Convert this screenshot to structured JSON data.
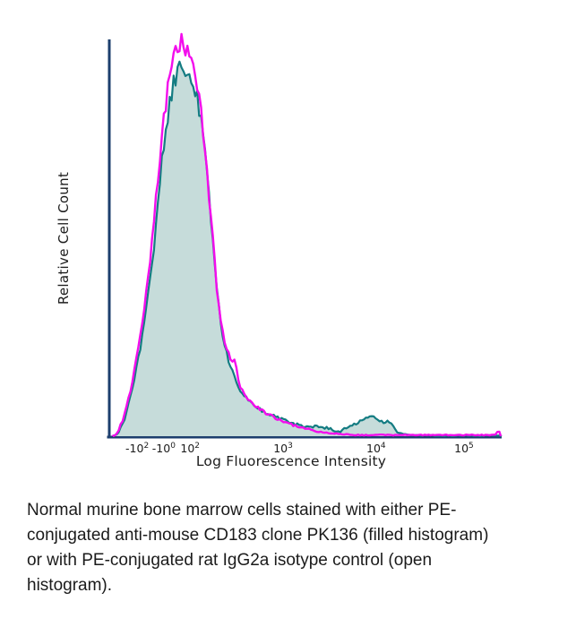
{
  "figure": {
    "caption_lines": [
      "Normal murine bone marrow cells stained with either PE-",
      "conjugated anti-mouse CD183 clone PK136 (filled histogram)",
      "or with PE-conjugated rat IgG2a isotype control (open",
      "histogram)."
    ]
  },
  "chart_data": {
    "type": "area",
    "subtype": "flow-cytometry-overlay-histogram",
    "title": "",
    "xlabel": "Log Fluorescence Intensity",
    "ylabel": "Relative Cell Count",
    "x_scale": "biexponential (logicle) log axis",
    "ylim": [
      0,
      1
    ],
    "grid": false,
    "legend_position": "none (series identified in caption)",
    "axis_color": "#1d3f6e",
    "text_color": "#1c1c1c",
    "x_ticks": [
      {
        "mantissa": "-10",
        "exp": "2",
        "pos": 0.071
      },
      {
        "mantissa": "-10",
        "exp": "0",
        "pos": 0.139
      },
      {
        "mantissa": "10",
        "exp": "2",
        "pos": 0.206
      },
      {
        "mantissa": "10",
        "exp": "3",
        "pos": 0.443
      },
      {
        "mantissa": "10",
        "exp": "4",
        "pos": 0.68
      },
      {
        "mantissa": "10",
        "exp": "5",
        "pos": 0.904
      }
    ],
    "series": [
      {
        "name": "PE-conjugated anti-mouse CD183 clone PK136",
        "style": "filled histogram",
        "line_color": "#147c82",
        "fill_color": "#c6dcda",
        "noise_seed": 13,
        "peak": {
          "pos": 0.185,
          "height": 0.94
        },
        "secondary_peak": {
          "pos": 0.676,
          "height": 0.05
        },
        "points": [
          [
            0.009,
            0
          ],
          [
            0.023,
            0.007
          ],
          [
            0.037,
            0.038
          ],
          [
            0.05,
            0.084
          ],
          [
            0.064,
            0.145
          ],
          [
            0.078,
            0.219
          ],
          [
            0.091,
            0.305
          ],
          [
            0.105,
            0.4
          ],
          [
            0.119,
            0.525
          ],
          [
            0.132,
            0.672
          ],
          [
            0.146,
            0.796
          ],
          [
            0.16,
            0.876
          ],
          [
            0.174,
            0.921
          ],
          [
            0.185,
            0.939
          ],
          [
            0.196,
            0.925
          ],
          [
            0.208,
            0.907
          ],
          [
            0.219,
            0.876
          ],
          [
            0.231,
            0.819
          ],
          [
            0.242,
            0.729
          ],
          [
            0.253,
            0.615
          ],
          [
            0.265,
            0.48
          ],
          [
            0.276,
            0.355
          ],
          [
            0.288,
            0.265
          ],
          [
            0.299,
            0.208
          ],
          [
            0.311,
            0.17
          ],
          [
            0.322,
            0.14
          ],
          [
            0.333,
            0.118
          ],
          [
            0.347,
            0.1
          ],
          [
            0.365,
            0.084
          ],
          [
            0.388,
            0.066
          ],
          [
            0.411,
            0.054
          ],
          [
            0.434,
            0.045
          ],
          [
            0.457,
            0.036
          ],
          [
            0.479,
            0.029
          ],
          [
            0.502,
            0.023
          ],
          [
            0.525,
            0.025
          ],
          [
            0.543,
            0.02
          ],
          [
            0.555,
            0.023
          ],
          [
            0.571,
            0.014
          ],
          [
            0.589,
            0.011
          ],
          [
            0.607,
            0.025
          ],
          [
            0.623,
            0.029
          ],
          [
            0.639,
            0.038
          ],
          [
            0.653,
            0.043
          ],
          [
            0.664,
            0.048
          ],
          [
            0.676,
            0.05
          ],
          [
            0.689,
            0.038
          ],
          [
            0.699,
            0.036
          ],
          [
            0.708,
            0.038
          ],
          [
            0.717,
            0.032
          ],
          [
            0.726,
            0.023
          ],
          [
            0.735,
            0.011
          ],
          [
            0.749,
            0.005
          ],
          [
            0.776,
            0.002
          ],
          [
            0.817,
            0.002
          ],
          [
            0.863,
            0.001
          ],
          [
            0.909,
            0.002
          ],
          [
            0.954,
            0.001
          ],
          [
            0.995,
            0.002
          ],
          [
            1.0,
            0
          ]
        ]
      },
      {
        "name": "PE-conjugated rat IgG2a isotype control",
        "style": "open histogram",
        "line_color": "#f30dec",
        "fill_color": "none",
        "noise_seed": 7,
        "peak": {
          "pos": 0.183,
          "height": 1.0
        },
        "points": [
          [
            0.009,
            0
          ],
          [
            0.018,
            0.005
          ],
          [
            0.032,
            0.034
          ],
          [
            0.046,
            0.079
          ],
          [
            0.059,
            0.143
          ],
          [
            0.073,
            0.219
          ],
          [
            0.087,
            0.31
          ],
          [
            0.1,
            0.412
          ],
          [
            0.114,
            0.541
          ],
          [
            0.128,
            0.695
          ],
          [
            0.142,
            0.83
          ],
          [
            0.155,
            0.916
          ],
          [
            0.169,
            0.966
          ],
          [
            0.183,
            0.995
          ],
          [
            0.194,
            0.984
          ],
          [
            0.205,
            0.962
          ],
          [
            0.217,
            0.921
          ],
          [
            0.228,
            0.864
          ],
          [
            0.24,
            0.767
          ],
          [
            0.251,
            0.649
          ],
          [
            0.263,
            0.509
          ],
          [
            0.274,
            0.378
          ],
          [
            0.285,
            0.283
          ],
          [
            0.297,
            0.219
          ],
          [
            0.308,
            0.197
          ],
          [
            0.322,
            0.186
          ],
          [
            0.331,
            0.133
          ],
          [
            0.345,
            0.104
          ],
          [
            0.365,
            0.084
          ],
          [
            0.388,
            0.066
          ],
          [
            0.411,
            0.052
          ],
          [
            0.434,
            0.041
          ],
          [
            0.457,
            0.032
          ],
          [
            0.479,
            0.025
          ],
          [
            0.502,
            0.018
          ],
          [
            0.525,
            0.014
          ],
          [
            0.548,
            0.009
          ],
          [
            0.571,
            0.007
          ],
          [
            0.6,
            0.005
          ],
          [
            0.635,
            0.003
          ],
          [
            0.703,
            0.003
          ],
          [
            0.772,
            0.003
          ],
          [
            0.84,
            0.003
          ],
          [
            0.909,
            0.003
          ],
          [
            0.982,
            0.003
          ],
          [
            0.993,
            0.014
          ],
          [
            0.998,
            0
          ]
        ]
      }
    ]
  }
}
